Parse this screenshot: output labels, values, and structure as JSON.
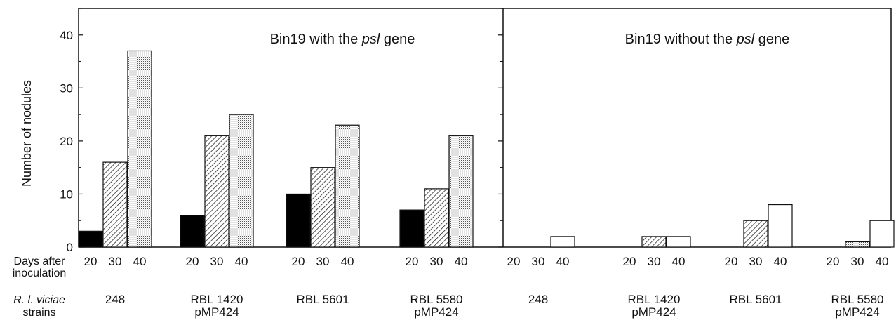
{
  "chart_data": {
    "type": "bar",
    "ylabel": "Number of nodules",
    "ylim": [
      0,
      45
    ],
    "yticks": [
      0,
      10,
      20,
      30,
      40
    ],
    "row_labels": {
      "days_line1": "Days after",
      "days_line2": "inoculation",
      "strains_line1": "R. l. viciae",
      "strains_line2": "strains"
    },
    "series": [
      {
        "name": "20",
        "fill": "black"
      },
      {
        "name": "30",
        "fill": "hatched"
      },
      {
        "name": "40",
        "fill": "dotted"
      }
    ],
    "panels": [
      {
        "title_pre": "Bin19 with the ",
        "title_italic": "psl",
        "title_post": " gene",
        "groups": [
          {
            "strain": [
              "248"
            ],
            "days": [
              "20",
              "30",
              "40"
            ],
            "values": [
              3,
              16,
              37
            ],
            "fills": [
              "black",
              "hatch",
              "dots"
            ]
          },
          {
            "strain": [
              "RBL 1420",
              "pMP424"
            ],
            "days": [
              "20",
              "30",
              "40"
            ],
            "values": [
              6,
              21,
              25
            ],
            "fills": [
              "black",
              "hatch",
              "dots"
            ]
          },
          {
            "strain": [
              "RBL 5601"
            ],
            "days": [
              "20",
              "30",
              "40"
            ],
            "values": [
              10,
              15,
              23
            ],
            "fills": [
              "black",
              "hatch",
              "dots"
            ]
          },
          {
            "strain": [
              "RBL 5580",
              "pMP424"
            ],
            "days": [
              "20",
              "30",
              "40"
            ],
            "values": [
              7,
              11,
              21
            ],
            "fills": [
              "black",
              "hatch",
              "dots"
            ]
          }
        ]
      },
      {
        "title_pre": "Bin19 without the ",
        "title_italic": "psl",
        "title_post": " gene",
        "groups": [
          {
            "strain": [
              "248"
            ],
            "days": [
              "20",
              "30",
              "40"
            ],
            "values": [
              0,
              0,
              2
            ],
            "fills": [
              "black",
              "hatch",
              "white"
            ]
          },
          {
            "strain": [
              "RBL 1420",
              "pMP424"
            ],
            "days": [
              "20",
              "30",
              "40"
            ],
            "values": [
              0,
              2,
              2
            ],
            "fills": [
              "black",
              "hatch",
              "white"
            ]
          },
          {
            "strain": [
              "RBL 5601"
            ],
            "days": [
              "20",
              "30",
              "40"
            ],
            "values": [
              0,
              5,
              8
            ],
            "fills": [
              "black",
              "hatch",
              "white"
            ]
          },
          {
            "strain": [
              "RBL 5580",
              "pMP424"
            ],
            "days": [
              "20",
              "30",
              "40"
            ],
            "values": [
              0,
              1,
              5
            ],
            "fills": [
              "black",
              "dots",
              "white"
            ]
          }
        ]
      }
    ]
  }
}
